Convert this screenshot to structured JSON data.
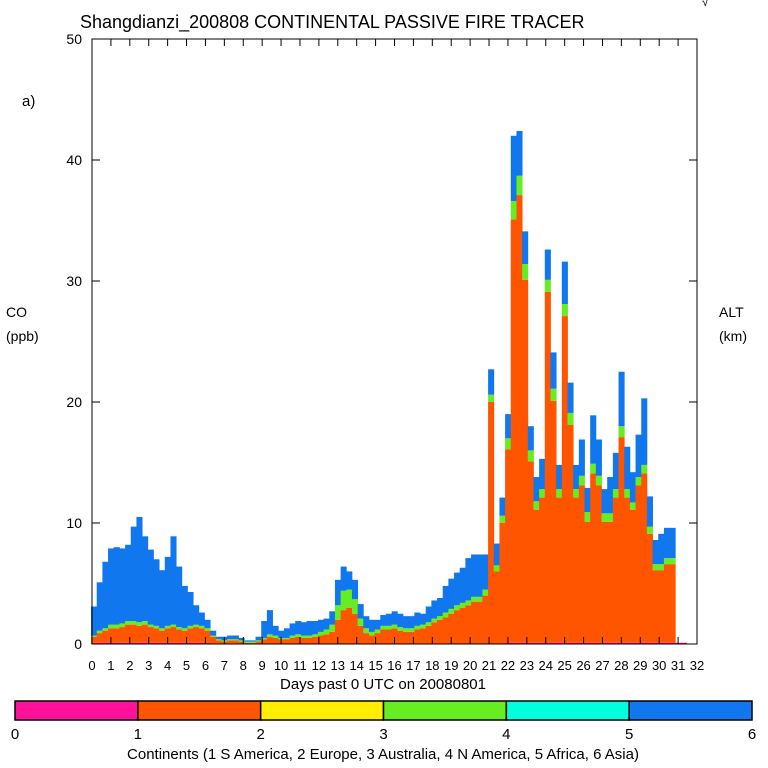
{
  "chart_data": {
    "type": "area",
    "stacked": true,
    "title": "Shangdianzi_200808 CONTINENTAL PASSIVE FIRE TRACER",
    "panel_label": "a)",
    "corner_mark": "√",
    "ylabel": "CO",
    "ylabel_unit": "(ppb)",
    "y2label": "ALT",
    "y2label_unit": "(km)",
    "xlabel": "Days past 0 UTC on 20080801",
    "xlim": [
      0,
      32
    ],
    "ylim": [
      0,
      50
    ],
    "yticks": [
      "0",
      "10",
      "20",
      "30",
      "40",
      "50"
    ],
    "xticks": [
      "0",
      "1",
      "2",
      "3",
      "4",
      "5",
      "6",
      "7",
      "8",
      "9",
      "10",
      "11",
      "12",
      "13",
      "14",
      "15",
      "16",
      "17",
      "18",
      "19",
      "20",
      "21",
      "22",
      "23",
      "24",
      "25",
      "26",
      "27",
      "28",
      "29",
      "30",
      "31",
      "32"
    ],
    "days": [
      0.1,
      0.4,
      0.7,
      1,
      1.3,
      1.6,
      1.9,
      2.2,
      2.5,
      2.8,
      3.1,
      3.4,
      3.7,
      4,
      4.3,
      4.6,
      4.9,
      5.2,
      5.5,
      5.8,
      6.1,
      6.4,
      6.7,
      7,
      7.3,
      7.6,
      7.9,
      8.2,
      8.5,
      8.8,
      9.1,
      9.4,
      9.7,
      10,
      10.3,
      10.6,
      10.9,
      11.2,
      11.5,
      11.8,
      12.1,
      12.4,
      12.7,
      13,
      13.3,
      13.6,
      13.9,
      14.2,
      14.5,
      14.8,
      15.1,
      15.4,
      15.7,
      16,
      16.3,
      16.6,
      16.9,
      17.2,
      17.5,
      17.8,
      18.1,
      18.4,
      18.7,
      19,
      19.3,
      19.6,
      19.9,
      20.2,
      20.5,
      20.8,
      21.1,
      21.4,
      21.7,
      22,
      22.3,
      22.6,
      22.9,
      23.2,
      23.5,
      23.8,
      24.1,
      24.4,
      24.7,
      25,
      25.3,
      25.6,
      25.9,
      26.2,
      26.5,
      26.8,
      27.1,
      27.4,
      27.7,
      28,
      28.3,
      28.6,
      28.9,
      29.2,
      29.5,
      29.8,
      30.1,
      30.4,
      30.7,
      31,
      31.3
    ],
    "series": [
      {
        "name": "S America",
        "continent_id": 1,
        "color": "#ff0099",
        "values": [
          0.1,
          0.1,
          0.1,
          0.1,
          0.1,
          0.1,
          0.1,
          0.1,
          0.1,
          0.1,
          0.1,
          0.1,
          0.1,
          0.1,
          0.1,
          0.1,
          0.1,
          0.1,
          0.1,
          0.1,
          0.1,
          0,
          0,
          0,
          0,
          0,
          0,
          0,
          0,
          0,
          0,
          0,
          0,
          0,
          0,
          0,
          0,
          0,
          0,
          0,
          0,
          0,
          0,
          0,
          0,
          0,
          0,
          0,
          0,
          0,
          0,
          0,
          0,
          0,
          0,
          0,
          0,
          0,
          0,
          0,
          0,
          0,
          0,
          0,
          0,
          0,
          0,
          0,
          0,
          0,
          0,
          0,
          0,
          0.1,
          0.1,
          0.1,
          0.1,
          0.1,
          0.1,
          0.1,
          0.1,
          0.1,
          0.1,
          0.1,
          0.1,
          0.1,
          0.1,
          0.1,
          0.1,
          0.1,
          0.1,
          0.1,
          0.1,
          0.1,
          0.1,
          0.1,
          0.1,
          0.1,
          0.1,
          0.1,
          0.1,
          0.1,
          0.1,
          0.1,
          0.1
        ]
      },
      {
        "name": "Europe",
        "continent_id": 2,
        "color": "#ff5500",
        "values": [
          0.5,
          0.8,
          1.0,
          1.2,
          1.2,
          1.3,
          1.5,
          1.5,
          1.4,
          1.5,
          1.3,
          1.2,
          1.0,
          1.2,
          1.3,
          1.1,
          1.0,
          1.2,
          1.3,
          1.2,
          1.0,
          0.6,
          0.3,
          0.2,
          0.3,
          0.3,
          0.2,
          0.1,
          0.1,
          0.2,
          0.4,
          0.6,
          0.5,
          0.4,
          0.4,
          0.5,
          0.6,
          0.5,
          0.5,
          0.6,
          0.7,
          0.8,
          1.0,
          2.0,
          2.8,
          3.0,
          2.5,
          1.5,
          0.9,
          0.7,
          0.9,
          1.2,
          1.2,
          1.3,
          1.1,
          1.0,
          1.0,
          1.2,
          1.3,
          1.5,
          1.8,
          2.0,
          2.2,
          2.5,
          2.8,
          3.0,
          3.2,
          3.5,
          3.5,
          4.0,
          20.0,
          6.0,
          10.0,
          16.0,
          35.0,
          37.0,
          30.0,
          15.0,
          11.0,
          12.0,
          29.0,
          20.0,
          12.0,
          27.0,
          18.0,
          12.0,
          13.0,
          10.0,
          14.0,
          13.0,
          10.0,
          10.0,
          12.0,
          17.0,
          12.0,
          11.0,
          13.0,
          14.0,
          9.0,
          6.0,
          6.0,
          6.5,
          6.5
        ]
      },
      {
        "name": "Australia",
        "continent_id": 3,
        "color": "#ffee00",
        "values": [
          0,
          0,
          0,
          0,
          0,
          0,
          0,
          0,
          0,
          0,
          0,
          0,
          0,
          0,
          0,
          0,
          0,
          0,
          0,
          0,
          0,
          0,
          0,
          0,
          0,
          0,
          0,
          0,
          0,
          0,
          0,
          0,
          0,
          0,
          0,
          0,
          0,
          0,
          0,
          0,
          0,
          0,
          0,
          0,
          0,
          0,
          0,
          0,
          0,
          0,
          0,
          0,
          0,
          0,
          0,
          0,
          0,
          0,
          0,
          0,
          0,
          0,
          0,
          0,
          0,
          0,
          0,
          0,
          0,
          0,
          0,
          0,
          0,
          0,
          0,
          0,
          0,
          0,
          0,
          0,
          0,
          0,
          0,
          0,
          0,
          0,
          0,
          0,
          0,
          0,
          0,
          0,
          0,
          0,
          0,
          0,
          0,
          0,
          0,
          0,
          0,
          0,
          0
        ]
      },
      {
        "name": "N America",
        "continent_id": 4,
        "color": "#66ee22",
        "values": [
          0.1,
          0.2,
          0.2,
          0.3,
          0.3,
          0.3,
          0.3,
          0.3,
          0.3,
          0.3,
          0.2,
          0.2,
          0.2,
          0.2,
          0.2,
          0.2,
          0.2,
          0.2,
          0.2,
          0.2,
          0.2,
          0.1,
          0.1,
          0.1,
          0.1,
          0.1,
          0.1,
          0.1,
          0.1,
          0.1,
          0.1,
          0.2,
          0.2,
          0.1,
          0.1,
          0.2,
          0.2,
          0.2,
          0.2,
          0.2,
          0.3,
          0.4,
          0.6,
          1.2,
          1.6,
          1.5,
          1.2,
          0.6,
          0.4,
          0.3,
          0.3,
          0.3,
          0.3,
          0.3,
          0.3,
          0.3,
          0.3,
          0.3,
          0.3,
          0.3,
          0.3,
          0.3,
          0.4,
          0.4,
          0.4,
          0.4,
          0.4,
          0.4,
          0.4,
          0.5,
          0.6,
          0.5,
          0.6,
          0.9,
          1.5,
          1.6,
          1.3,
          0.9,
          0.7,
          0.7,
          1.0,
          1.0,
          0.7,
          1.0,
          1.0,
          0.7,
          0.8,
          0.8,
          0.8,
          0.8,
          0.7,
          0.7,
          0.7,
          0.9,
          0.7,
          0.6,
          0.7,
          0.7,
          0.6,
          0.5,
          0.5,
          0.5,
          0.5
        ]
      },
      {
        "name": "Africa",
        "continent_id": 5,
        "color": "#00ffdd",
        "values": [
          0,
          0,
          0,
          0,
          0,
          0,
          0,
          0,
          0,
          0,
          0,
          0,
          0,
          0,
          0,
          0,
          0,
          0,
          0,
          0,
          0,
          0,
          0,
          0,
          0,
          0,
          0,
          0,
          0,
          0,
          0,
          0,
          0,
          0,
          0,
          0,
          0,
          0,
          0,
          0,
          0,
          0,
          0,
          0,
          0,
          0,
          0,
          0,
          0,
          0,
          0,
          0,
          0,
          0,
          0,
          0,
          0,
          0,
          0,
          0,
          0,
          0,
          0,
          0,
          0,
          0,
          0,
          0,
          0,
          0,
          0,
          0,
          0,
          0,
          0,
          0,
          0,
          0,
          0,
          0,
          0,
          0,
          0,
          0,
          0,
          0,
          0,
          0,
          0,
          0,
          0,
          0,
          0,
          0,
          0,
          0,
          0,
          0,
          0,
          0,
          0,
          0,
          0
        ]
      },
      {
        "name": "Asia",
        "continent_id": 6,
        "color": "#1177ee",
        "values": [
          2.4,
          4.0,
          5.5,
          6.3,
          6.4,
          6.2,
          6.3,
          7.8,
          8.7,
          7.0,
          6.2,
          5.5,
          4.8,
          5.7,
          7.3,
          5.0,
          3.5,
          2.8,
          1.6,
          1.1,
          0.7,
          0.4,
          0.2,
          0.3,
          0.3,
          0.3,
          0.2,
          0.1,
          0.1,
          0.3,
          1.4,
          2.0,
          0.8,
          0.6,
          0.8,
          1.0,
          1.1,
          1.1,
          1.2,
          1.1,
          1.0,
          0.9,
          1.1,
          2.1,
          2.0,
          1.5,
          1.6,
          1.2,
          1.0,
          1.0,
          0.8,
          0.9,
          1.0,
          1.1,
          1.1,
          1.0,
          1.0,
          1.1,
          0.9,
          1.3,
          1.5,
          1.5,
          2.2,
          2.5,
          2.7,
          2.9,
          3.5,
          3.5,
          3.5,
          2.9,
          2.1,
          1.8,
          1.5,
          2.0,
          5.4,
          3.7,
          2.7,
          2.0,
          2.0,
          2.5,
          2.5,
          3.0,
          2.0,
          3.5,
          2.5,
          2.0,
          3.0,
          2.0,
          4.0,
          3.0,
          2.0,
          3.0,
          3.0,
          4.5,
          3.5,
          2.5,
          3.5,
          5.5,
          2.5,
          2.0,
          2.5,
          2.5,
          2.5
        ]
      }
    ],
    "colorbar": {
      "ticks": [
        "0",
        "1",
        "2",
        "3",
        "4",
        "5",
        "6"
      ],
      "segments": [
        "#ff1199",
        "#ff5500",
        "#ffee00",
        "#66ee22",
        "#00ffdd",
        "#1177ee"
      ],
      "label": "Continents (1 S America, 2 Europe, 3 Australia, 4 N America, 5 Africa, 6 Asia)"
    }
  }
}
